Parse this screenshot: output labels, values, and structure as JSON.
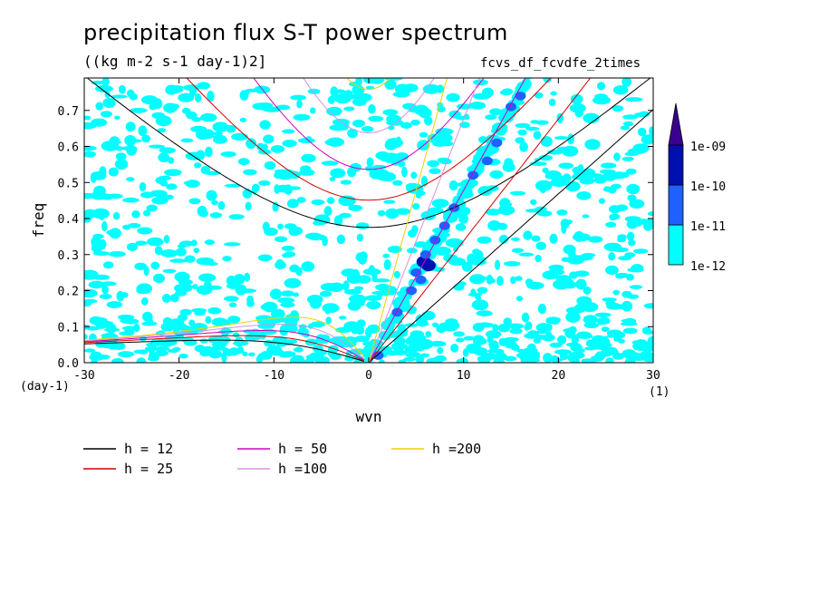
{
  "header": {
    "title": "precipitation flux S-T power spectrum",
    "units": "((kg m-2 s-1 day-1)2]",
    "dataset": "fcvs_df_fcvdfe_2times"
  },
  "chart_data": {
    "type": "heatmap",
    "title": "precipitation flux S-T power spectrum",
    "xlabel": "wvn",
    "ylabel": "freq",
    "x_unit_label": "(1)",
    "y_unit_label": "(day-1)",
    "xlim": [
      -30,
      30
    ],
    "ylim": [
      0,
      0.79
    ],
    "xticks": [
      -30,
      -20,
      -10,
      0,
      10,
      20,
      30
    ],
    "xtick_labels": [
      "-30",
      "-20",
      "-10",
      "0",
      "10",
      "20",
      "30"
    ],
    "yticks": [
      0.0,
      0.1,
      0.2,
      0.3,
      0.4,
      0.5,
      0.6,
      0.7
    ],
    "ytick_labels": [
      "0.0",
      "0.1",
      "0.2",
      "0.3",
      "0.4",
      "0.5",
      "0.6",
      "0.7"
    ],
    "colorbar": {
      "levels": [
        "1e-12",
        "1e-11",
        "1e-10",
        "1e-09"
      ],
      "colors": [
        "#00ffff",
        "#2060ff",
        "#0010b0",
        "#3a0090"
      ]
    },
    "kelvin_blobs": [
      {
        "x": 1,
        "y": 0.02,
        "level": 1
      },
      {
        "x": 3,
        "y": 0.14,
        "level": 1
      },
      {
        "x": 4.5,
        "y": 0.2,
        "level": 1
      },
      {
        "x": 5,
        "y": 0.25,
        "level": 1
      },
      {
        "x": 5.5,
        "y": 0.23,
        "level": 1
      },
      {
        "x": 5.8,
        "y": 0.28,
        "level": 2
      },
      {
        "x": 6,
        "y": 0.3,
        "level": 1
      },
      {
        "x": 6.3,
        "y": 0.27,
        "level": 2
      },
      {
        "x": 7,
        "y": 0.34,
        "level": 1
      },
      {
        "x": 8,
        "y": 0.38,
        "level": 1
      },
      {
        "x": 9,
        "y": 0.43,
        "level": 1
      },
      {
        "x": 11,
        "y": 0.52,
        "level": 1
      },
      {
        "x": 12.5,
        "y": 0.56,
        "level": 1
      },
      {
        "x": 13.5,
        "y": 0.61,
        "level": 1
      },
      {
        "x": 15,
        "y": 0.71,
        "level": 1
      },
      {
        "x": 16,
        "y": 0.74,
        "level": 1
      }
    ],
    "dispersion_curves": [
      {
        "h": 12,
        "label": "h = 12",
        "color": "#000000"
      },
      {
        "h": 25,
        "label": "h = 25",
        "color": "#d00000"
      },
      {
        "h": 50,
        "label": "h = 50",
        "color": "#d000c0"
      },
      {
        "h": 100,
        "label": "h =100",
        "color": "#d890e0"
      },
      {
        "h": 200,
        "label": "h =200",
        "color": "#f0d000"
      }
    ]
  }
}
